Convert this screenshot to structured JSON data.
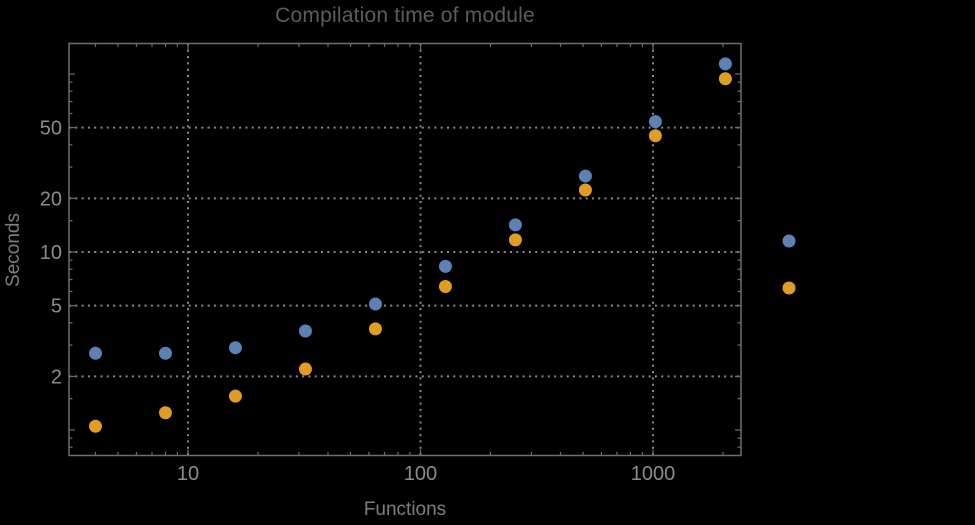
{
  "page": {
    "background": "#000000"
  },
  "colors": {
    "frame": "#6f6f6f",
    "gridline": "#8a8a8a",
    "tick": "#6f6f6f",
    "tick_label": "#8c8c8c",
    "title": "#5d5d61",
    "axis_label": "#7e7e82",
    "series_blue": "#5e81b5",
    "series_orange": "#e19c24"
  },
  "chart_data": {
    "type": "scatter",
    "title": "Compilation time of module",
    "xlabel": "Functions",
    "ylabel": "Seconds",
    "x_scale": "log",
    "y_scale": "log",
    "xlim": [
      3.1,
      2390
    ],
    "ylim": [
      0.72,
      148
    ],
    "grid": "dotted, at labeled major ticks only",
    "legend_position": "outside right, markers only (labels not visible)",
    "x": [
      4,
      8,
      16,
      32,
      64,
      128,
      256,
      512,
      1024,
      2048
    ],
    "series": [
      {
        "name": "blue",
        "color": "#5e81b5",
        "values": [
          2.7,
          2.7,
          2.9,
          3.6,
          5.1,
          8.3,
          14.2,
          26.7,
          54,
          114
        ]
      },
      {
        "name": "orange",
        "color": "#e19c24",
        "values": [
          1.05,
          1.25,
          1.55,
          2.2,
          3.7,
          6.4,
          11.7,
          22.3,
          45,
          94
        ]
      }
    ],
    "x_gridlines": [
      10,
      100,
      1000
    ],
    "y_gridlines": [
      2,
      5,
      10,
      20,
      50
    ]
  },
  "axes": {
    "x_major_ticks": [
      10,
      100,
      1000
    ],
    "x_major_tick_labels": [
      "10",
      "100",
      "1000"
    ],
    "x_minor_ticks": [
      4,
      5,
      6,
      7,
      8,
      9,
      20,
      30,
      40,
      50,
      60,
      70,
      80,
      90,
      200,
      300,
      400,
      500,
      600,
      700,
      800,
      900,
      2000
    ],
    "y_major_ticks": [
      2,
      5,
      10,
      20,
      50
    ],
    "y_major_tick_labels": [
      "2",
      "5",
      "10",
      "20",
      "50"
    ],
    "y_medium_ticks": [
      1,
      100
    ],
    "y_minor_ticks": [
      0.8,
      0.9,
      1.5,
      3,
      4,
      6,
      7,
      8,
      9,
      15,
      30,
      40,
      60,
      70,
      80,
      90
    ]
  },
  "legend": {
    "markers": [
      {
        "series": "blue",
        "color": "#5e81b5",
        "label": ""
      },
      {
        "series": "orange",
        "color": "#e19c24",
        "label": ""
      }
    ]
  }
}
